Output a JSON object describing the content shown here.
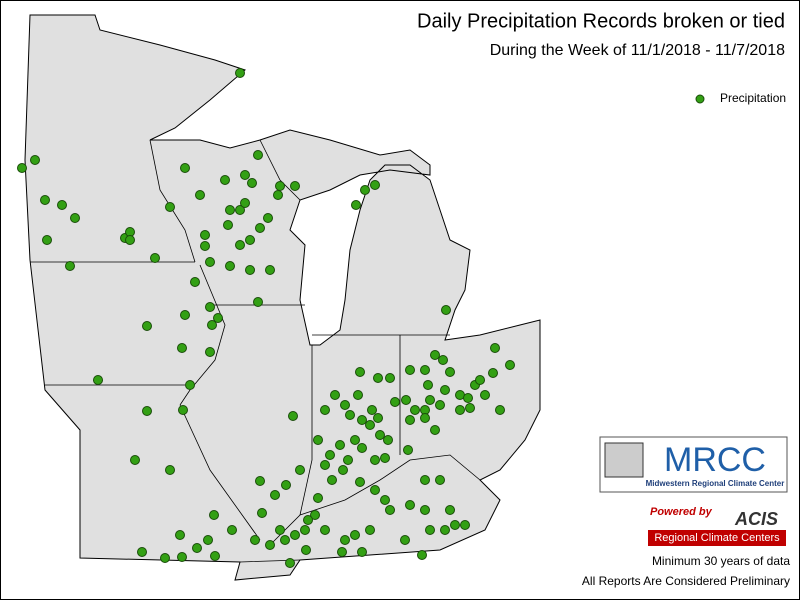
{
  "header": {
    "title": "Daily Precipitation Records broken or tied",
    "subtitle": "During the Week of 11/1/2018 - 11/7/2018"
  },
  "legend": {
    "label": "Precipitation"
  },
  "logos": {
    "mrcc": "MRCC",
    "mrcc_name": "Midwestern Regional Climate Center",
    "powered_by": "Powered by",
    "acis": "ACIS",
    "acis_name": "Regional Climate Centers"
  },
  "notes": [
    "Minimum 30 years of data",
    "All Reports Are Considered Preliminary"
  ]
}
